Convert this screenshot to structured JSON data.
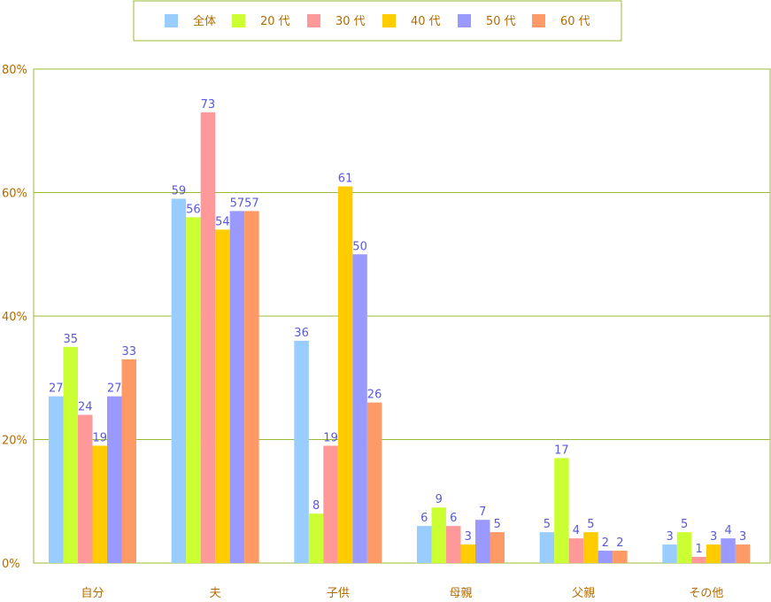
{
  "chart_data": {
    "type": "bar",
    "categories": [
      "自分",
      "夫",
      "子供",
      "母親",
      "父親",
      "その他"
    ],
    "series": [
      {
        "name": "全体",
        "color": "#99ccff",
        "values": [
          27,
          59,
          36,
          6,
          5,
          3
        ]
      },
      {
        "name": "20 代",
        "color": "#ccff33",
        "values": [
          35,
          56,
          8,
          9,
          17,
          5
        ]
      },
      {
        "name": "30 代",
        "color": "#ff9999",
        "values": [
          24,
          73,
          19,
          6,
          4,
          1
        ]
      },
      {
        "name": "40 代",
        "color": "#ffcc00",
        "values": [
          19,
          54,
          61,
          3,
          5,
          3
        ]
      },
      {
        "name": "50 代",
        "color": "#9999ff",
        "values": [
          27,
          57,
          50,
          7,
          2,
          4
        ]
      },
      {
        "name": "60 代",
        "color": "#ff9966",
        "values": [
          33,
          57,
          26,
          5,
          2,
          3
        ]
      }
    ],
    "ylim": [
      0,
      80
    ],
    "yticks": [
      "0%",
      "20%",
      "40%",
      "60%",
      "80%"
    ],
    "ytick_values": [
      0,
      20,
      40,
      60,
      80
    ],
    "grid": true,
    "legend_position": "top"
  }
}
